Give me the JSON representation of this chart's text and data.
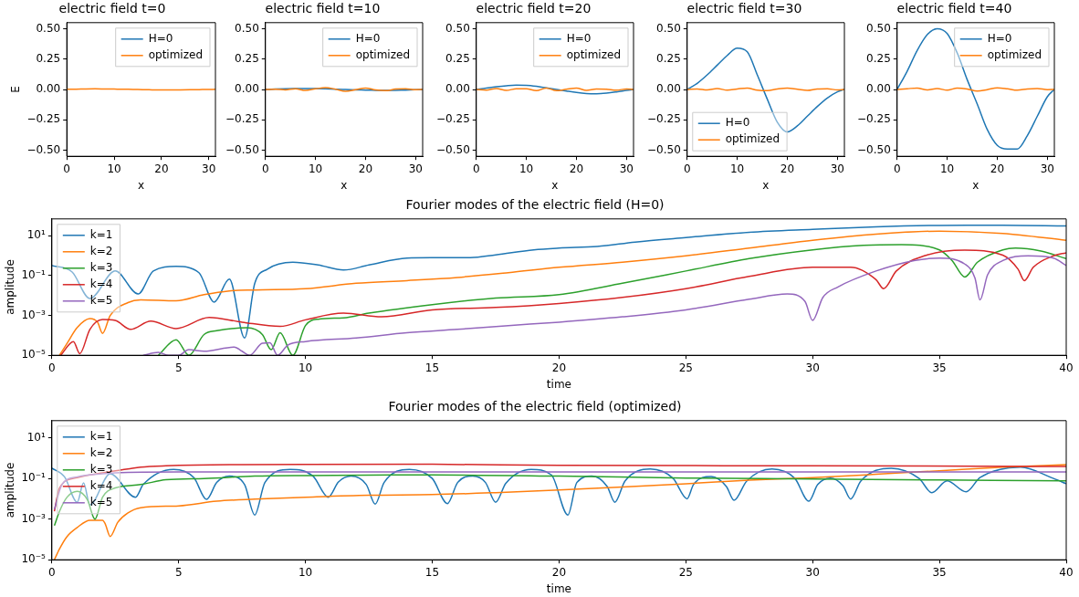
{
  "chart_data": [
    {
      "type": "line",
      "title": "electric field t=0",
      "xlabel": "x",
      "ylabel": "E",
      "x": [
        0,
        2,
        4,
        6,
        8,
        10,
        12,
        14,
        16,
        18,
        20,
        22,
        24,
        26,
        28,
        30,
        31.4
      ],
      "xlim": [
        0,
        31.4
      ],
      "xticks": [
        0,
        10,
        20,
        30
      ],
      "ylim": [
        -0.55,
        0.55
      ],
      "yticks": [
        {
          "value": 0.5,
          "label": "0.50"
        },
        {
          "value": 0.25,
          "label": "0.25"
        },
        {
          "value": 0,
          "label": "0.00"
        },
        {
          "value": -0.25,
          "label": "−0.25"
        },
        {
          "value": -0.5,
          "label": "−0.50"
        }
      ],
      "legend": "top right",
      "series": [
        {
          "name": "H=0",
          "color": "#1f77b4",
          "values": [
            null,
            null,
            null,
            null,
            null,
            null,
            null,
            null,
            null,
            null,
            null,
            null,
            null,
            null,
            null,
            null,
            null
          ]
        },
        {
          "name": "optimized",
          "color": "#ff7f0e",
          "values": [
            0.001,
            0.002,
            0.004,
            0.005,
            0.004,
            0.003,
            0.002,
            0,
            -0.001,
            -0.003,
            -0.004,
            -0.004,
            -0.003,
            -0.002,
            -0.001,
            0,
            0.001
          ]
        }
      ]
    },
    {
      "type": "line",
      "title": "electric field t=10",
      "xlabel": "x",
      "x": [
        0,
        2,
        4,
        6,
        8,
        10,
        12,
        14,
        16,
        18,
        20,
        22,
        24,
        26,
        28,
        30,
        31.4
      ],
      "xlim": [
        0,
        31.4
      ],
      "xticks": [
        0,
        10,
        20,
        30
      ],
      "ylim": [
        -0.55,
        0.55
      ],
      "yticks": [
        {
          "value": 0.5,
          "label": "0.50"
        },
        {
          "value": 0.25,
          "label": "0.25"
        },
        {
          "value": 0,
          "label": "0.00"
        },
        {
          "value": -0.25,
          "label": "−0.25"
        },
        {
          "value": -0.5,
          "label": "−0.50"
        }
      ],
      "legend": "top right",
      "series": [
        {
          "name": "H=0",
          "color": "#1f77b4",
          "values": [
            0,
            0.003,
            0.005,
            0.007,
            0.008,
            0.007,
            0.005,
            0.002,
            0,
            -0.003,
            -0.005,
            -0.007,
            -0.008,
            -0.007,
            -0.005,
            -0.002,
            0
          ]
        },
        {
          "name": "optimized",
          "color": "#ff7f0e",
          "values": [
            0,
            0.002,
            -0.003,
            0.005,
            -0.008,
            0.005,
            0.015,
            0.002,
            -0.015,
            -0.002,
            0.012,
            -0.004,
            -0.01,
            0.003,
            0.006,
            -0.002,
            0
          ]
        }
      ]
    },
    {
      "type": "line",
      "title": "electric field t=20",
      "xlabel": "x",
      "x": [
        0,
        2,
        4,
        6,
        8,
        10,
        12,
        14,
        16,
        18,
        20,
        22,
        24,
        26,
        28,
        30,
        31.4
      ],
      "xlim": [
        0,
        31.4
      ],
      "xticks": [
        0,
        10,
        20,
        30
      ],
      "ylim": [
        -0.55,
        0.55
      ],
      "yticks": [
        {
          "value": 0.5,
          "label": "0.50"
        },
        {
          "value": 0.25,
          "label": "0.25"
        },
        {
          "value": 0,
          "label": "0.00"
        },
        {
          "value": -0.25,
          "label": "−0.25"
        },
        {
          "value": -0.5,
          "label": "−0.50"
        }
      ],
      "legend": "top right",
      "series": [
        {
          "name": "H=0",
          "color": "#1f77b4",
          "values": [
            0,
            0.012,
            0.022,
            0.03,
            0.035,
            0.034,
            0.026,
            0.013,
            0,
            -0.013,
            -0.025,
            -0.033,
            -0.035,
            -0.03,
            -0.02,
            -0.008,
            0
          ]
        },
        {
          "name": "optimized",
          "color": "#ff7f0e",
          "values": [
            0,
            -0.005,
            0.008,
            -0.008,
            0.006,
            0.005,
            -0.01,
            0.012,
            -0.01,
            0.002,
            0.012,
            -0.008,
            0.004,
            0.002,
            -0.006,
            0.004,
            0
          ]
        }
      ]
    },
    {
      "type": "line",
      "title": "electric field t=30",
      "xlabel": "x",
      "x": [
        0,
        2,
        4,
        6,
        8,
        10,
        12,
        14,
        16,
        18,
        20,
        22,
        24,
        26,
        28,
        30,
        31.4
      ],
      "xlim": [
        0,
        31.4
      ],
      "xticks": [
        0,
        10,
        20,
        30
      ],
      "ylim": [
        -0.55,
        0.55
      ],
      "yticks": [
        {
          "value": 0.5,
          "label": "0.50"
        },
        {
          "value": 0.25,
          "label": "0.25"
        },
        {
          "value": 0,
          "label": "0.00"
        },
        {
          "value": -0.25,
          "label": "−0.25"
        },
        {
          "value": -0.5,
          "label": "−0.50"
        }
      ],
      "legend": "bottom left",
      "series": [
        {
          "name": "H=0",
          "color": "#1f77b4",
          "values": [
            0,
            0.05,
            0.12,
            0.2,
            0.28,
            0.34,
            0.31,
            0.12,
            -0.08,
            -0.27,
            -0.35,
            -0.3,
            -0.22,
            -0.14,
            -0.07,
            -0.02,
            0
          ]
        },
        {
          "name": "optimized",
          "color": "#ff7f0e",
          "values": [
            0,
            0.004,
            -0.004,
            0.008,
            -0.006,
            0.004,
            0.012,
            -0.006,
            -0.01,
            0.004,
            0.012,
            0.002,
            -0.008,
            0.004,
            0.006,
            -0.004,
            0
          ]
        }
      ]
    },
    {
      "type": "line",
      "title": "electric field t=40",
      "xlabel": "x",
      "x": [
        0,
        2,
        4,
        6,
        8,
        10,
        12,
        14,
        16,
        18,
        20,
        22,
        24,
        26,
        28,
        30,
        31.4
      ],
      "xlim": [
        0,
        31.4
      ],
      "xticks": [
        0,
        10,
        20,
        30
      ],
      "ylim": [
        -0.55,
        0.55
      ],
      "yticks": [
        {
          "value": 0.5,
          "label": "0.50"
        },
        {
          "value": 0.25,
          "label": "0.25"
        },
        {
          "value": 0,
          "label": "0.00"
        },
        {
          "value": -0.25,
          "label": "−0.25"
        },
        {
          "value": -0.5,
          "label": "−0.50"
        }
      ],
      "legend": "top right",
      "series": [
        {
          "name": "H=0",
          "color": "#1f77b4",
          "values": [
            0,
            0.15,
            0.32,
            0.45,
            0.5,
            0.46,
            0.3,
            0.08,
            -0.12,
            -0.33,
            -0.46,
            -0.49,
            -0.49,
            -0.38,
            -0.22,
            -0.06,
            0
          ]
        },
        {
          "name": "optimized",
          "color": "#ff7f0e",
          "values": [
            0,
            0.006,
            0.012,
            -0.004,
            0.008,
            -0.006,
            0.012,
            0.004,
            -0.014,
            -0.002,
            0.014,
            0.006,
            -0.006,
            0.004,
            0.008,
            -0.002,
            0
          ]
        }
      ]
    },
    {
      "type": "line",
      "title": "Fourier modes of the electric field (H=0)",
      "xlabel": "time",
      "ylabel": "amplitude",
      "log": "y",
      "xlim": [
        0,
        40
      ],
      "xticks": [
        0,
        5,
        10,
        15,
        20,
        25,
        30,
        35,
        40
      ],
      "ylim": [
        1e-05,
        70
      ],
      "yticks": [
        {
          "value": 10,
          "label": "10¹"
        },
        {
          "value": 0.1,
          "label": "10⁻¹"
        },
        {
          "value": 0.001,
          "label": "10⁻³"
        },
        {
          "value": 1e-05,
          "label": "10⁻⁵"
        }
      ],
      "legend": "top left",
      "series": [
        {
          "name": "k=1",
          "color": "#1f77b4",
          "x": [
            0,
            0.8,
            1.5,
            2.5,
            3.4,
            4.0,
            4.9,
            5.8,
            6.4,
            7.0,
            7.6,
            8.0,
            8.5,
            9.5,
            10.5,
            11.5,
            12.5,
            14,
            15,
            16.5,
            17.5,
            19,
            20,
            21.5,
            23,
            25,
            27.5,
            30,
            32.5,
            35,
            37.5,
            40
          ],
          "values": [
            0.32,
            0.15,
            0.007,
            0.17,
            0.012,
            0.17,
            0.29,
            0.14,
            0.0047,
            0.066,
            7.4e-05,
            0.04,
            0.21,
            0.47,
            0.34,
            0.19,
            0.34,
            0.76,
            0.79,
            0.8,
            1.1,
            1.96,
            2.4,
            2.9,
            4.8,
            8.1,
            15,
            21,
            28,
            33,
            34,
            31
          ]
        },
        {
          "name": "k=2",
          "color": "#ff7f0e",
          "x": [
            0.3,
            0.6,
            1,
            1.5,
            1.8,
            2.0,
            2.3,
            3,
            3.5,
            4.9,
            6,
            7,
            8,
            10,
            12,
            14,
            16,
            18,
            20,
            22.5,
            25,
            27.5,
            30,
            32.5,
            35,
            37.5,
            40
          ],
          "values": [
            1e-05,
            4e-05,
            0.00025,
            0.0007,
            0.00046,
            0.000126,
            0.001,
            0.0044,
            0.006,
            0.0054,
            0.011,
            0.017,
            0.019,
            0.022,
            0.041,
            0.056,
            0.081,
            0.14,
            0.26,
            0.47,
            0.98,
            2.4,
            5.9,
            12,
            17,
            13,
            5.9
          ]
        },
        {
          "name": "k=3",
          "color": "#2ca02c",
          "x": [
            4.2,
            4.9,
            5.4,
            6,
            6.5,
            7.7,
            8.3,
            8.65,
            9.0,
            9.5,
            10,
            10.5,
            11.5,
            12.5,
            15,
            17.5,
            20,
            22.5,
            25,
            27.5,
            30,
            32,
            33.5,
            35,
            35.5,
            36,
            36.5,
            37.5,
            38,
            39,
            40
          ],
          "values": [
            1e-05,
            6e-05,
            1e-05,
            0.00011,
            0.00017,
            0.00024,
            0.00011,
            1.9e-05,
            0.000135,
            1e-05,
            0.00031,
            0.00065,
            0.00075,
            0.0013,
            0.0035,
            0.0074,
            0.011,
            0.041,
            0.17,
            0.71,
            1.96,
            3.3,
            3.6,
            1.96,
            0.57,
            0.085,
            0.47,
            1.96,
            2.4,
            1.7,
            0.71
          ]
        },
        {
          "name": "k=4",
          "color": "#d62728",
          "x": [
            0.35,
            0.85,
            1.1,
            1.5,
            2.0,
            2.5,
            3.1,
            3.9,
            4.9,
            6.2,
            7.5,
            9,
            10,
            11.5,
            13,
            15,
            17.5,
            20,
            22.5,
            25,
            27.5,
            30,
            31.5,
            32.5,
            32.8,
            33.3,
            34.5,
            36,
            37.5,
            38.1,
            38.35,
            38.7,
            39.5,
            40
          ],
          "values": [
            1e-05,
            4.9e-05,
            1.2e-05,
            0.0002,
            0.00062,
            0.00056,
            0.0002,
            0.00052,
            0.00022,
            0.00079,
            0.00046,
            0.00028,
            0.0006,
            0.0013,
            0.00085,
            0.0019,
            0.0025,
            0.004,
            0.008,
            0.022,
            0.091,
            0.26,
            0.26,
            0.062,
            0.022,
            0.17,
            1.07,
            1.9,
            1.07,
            0.21,
            0.056,
            0.26,
            0.98,
            1.4
          ]
        },
        {
          "name": "k=5",
          "color": "#9467bd",
          "x": [
            3.6,
            4.2,
            4.6,
            5.0,
            5.4,
            6,
            7.2,
            7.5,
            7.8,
            8.3,
            8.6,
            8.9,
            9.3,
            10,
            12,
            14,
            16,
            18,
            20,
            22.5,
            25,
            27.5,
            29,
            29.7,
            30,
            30.4,
            31,
            32.5,
            34,
            35,
            36,
            36.4,
            36.6,
            36.9,
            37.5,
            38.5,
            39.5,
            40
          ],
          "values": [
            1e-05,
            1.4e-05,
            1e-05,
            1e-05,
            1.9e-05,
            1.6e-05,
            2.6e-05,
            1.6e-05,
            1e-05,
            4e-05,
            4.2e-05,
            1e-05,
            3.2e-05,
            4.9e-05,
            7.4e-05,
            0.000135,
            0.0002,
            0.00031,
            0.00046,
            0.00085,
            0.0019,
            0.0065,
            0.012,
            0.005,
            0.00056,
            0.0079,
            0.027,
            0.17,
            0.57,
            0.76,
            0.38,
            0.076,
            0.006,
            0.11,
            0.57,
            0.98,
            0.76,
            0.32
          ]
        }
      ]
    },
    {
      "type": "line",
      "title": "Fourier modes of the electric field (optimized)",
      "xlabel": "time",
      "ylabel": "amplitude",
      "log": "y",
      "xlim": [
        0,
        40
      ],
      "xticks": [
        0,
        5,
        10,
        15,
        20,
        25,
        30,
        35,
        40
      ],
      "ylim": [
        1e-05,
        70
      ],
      "yticks": [
        {
          "value": 10,
          "label": "10¹"
        },
        {
          "value": 0.1,
          "label": "10⁻¹"
        },
        {
          "value": 0.001,
          "label": "10⁻³"
        },
        {
          "value": 1e-05,
          "label": "10⁻⁵"
        }
      ],
      "legend": "top left",
      "series": [
        {
          "name": "k=1",
          "color": "#1f77b4",
          "x": [
            0,
            0.5,
            1.0,
            1.25,
            1.5,
            2.3,
            3.3,
            3.6,
            4.8,
            5.6,
            6.1,
            6.5,
            7.0,
            7.6,
            8.0,
            8.4,
            9.4,
            10.3,
            10.9,
            11.3,
            11.8,
            12.4,
            12.75,
            13.1,
            14.1,
            15.0,
            15.6,
            16.0,
            16.6,
            17.1,
            17.5,
            17.9,
            18.9,
            19.7,
            20.35,
            20.7,
            21.3,
            21.9,
            22.2,
            22.6,
            23.6,
            24.5,
            25.05,
            25.3,
            26.0,
            26.6,
            26.9,
            27.4,
            28.4,
            29.3,
            29.85,
            30.2,
            30.7,
            31.2,
            31.5,
            31.9,
            33.1,
            34.2,
            34.7,
            35.3,
            36.05,
            36.6,
            38.2,
            39.5,
            40
          ],
          "values": [
            0.32,
            0.12,
            0.0068,
            0.06,
            0.005,
            0.17,
            0.012,
            0.05,
            0.28,
            0.11,
            0.0093,
            0.063,
            0.13,
            0.05,
            0.0016,
            0.063,
            0.28,
            0.13,
            0.012,
            0.067,
            0.13,
            0.05,
            0.0055,
            0.063,
            0.28,
            0.1,
            0.0058,
            0.063,
            0.13,
            0.063,
            0.0068,
            0.058,
            0.28,
            0.15,
            0.0016,
            0.063,
            0.13,
            0.04,
            0.0068,
            0.075,
            0.29,
            0.1,
            0.01,
            0.05,
            0.125,
            0.04,
            0.0084,
            0.075,
            0.29,
            0.1,
            0.0076,
            0.05,
            0.104,
            0.043,
            0.0097,
            0.075,
            0.32,
            0.1,
            0.02,
            0.076,
            0.022,
            0.11,
            0.36,
            0.1,
            0.055
          ]
        },
        {
          "name": "k=2",
          "color": "#ff7f0e",
          "x": [
            0.1,
            0.3,
            0.6,
            1.0,
            1.5,
            2.0,
            2.1,
            2.3,
            2.6,
            3,
            3.5,
            5,
            6.5,
            8,
            10,
            12.5,
            15,
            17.5,
            20,
            22.5,
            25,
            27.5,
            30,
            32.5,
            35,
            37.5,
            40
          ],
          "values": [
            1e-05,
            3.4e-05,
            0.00014,
            0.00039,
            0.00087,
            0.00087,
            0.0006,
            0.00014,
            0.0007,
            0.002,
            0.0036,
            0.0045,
            0.0076,
            0.0096,
            0.012,
            0.015,
            0.016,
            0.02,
            0.027,
            0.038,
            0.055,
            0.083,
            0.11,
            0.16,
            0.24,
            0.36,
            0.48
          ]
        },
        {
          "name": "k=3",
          "color": "#2ca02c",
          "x": [
            0.1,
            0.3,
            0.6,
            1.0,
            1.4,
            1.7,
            2.0,
            2.5,
            3.5,
            4.5,
            6,
            8,
            10,
            15,
            20,
            25,
            30,
            35,
            40
          ],
          "values": [
            0.00048,
            0.0024,
            0.012,
            0.023,
            0.009,
            0.001,
            0.012,
            0.034,
            0.05,
            0.087,
            0.1,
            0.13,
            0.14,
            0.15,
            0.13,
            0.105,
            0.094,
            0.084,
            0.077
          ]
        },
        {
          "name": "k=4",
          "color": "#d62728",
          "x": [
            0.1,
            0.3,
            1.0,
            2,
            3,
            3.5,
            4.5,
            7,
            10,
            15,
            20,
            30,
            40
          ],
          "values": [
            0.0024,
            0.034,
            0.11,
            0.19,
            0.29,
            0.36,
            0.42,
            0.48,
            0.49,
            0.5,
            0.44,
            0.42,
            0.39
          ]
        },
        {
          "name": "k=5",
          "color": "#9467bd",
          "x": [
            0.1,
            0.4,
            1,
            2,
            3,
            5,
            10,
            20,
            30,
            40
          ],
          "values": [
            0.003,
            0.05,
            0.12,
            0.17,
            0.2,
            0.21,
            0.21,
            0.21,
            0.21,
            0.21
          ]
        }
      ]
    }
  ]
}
